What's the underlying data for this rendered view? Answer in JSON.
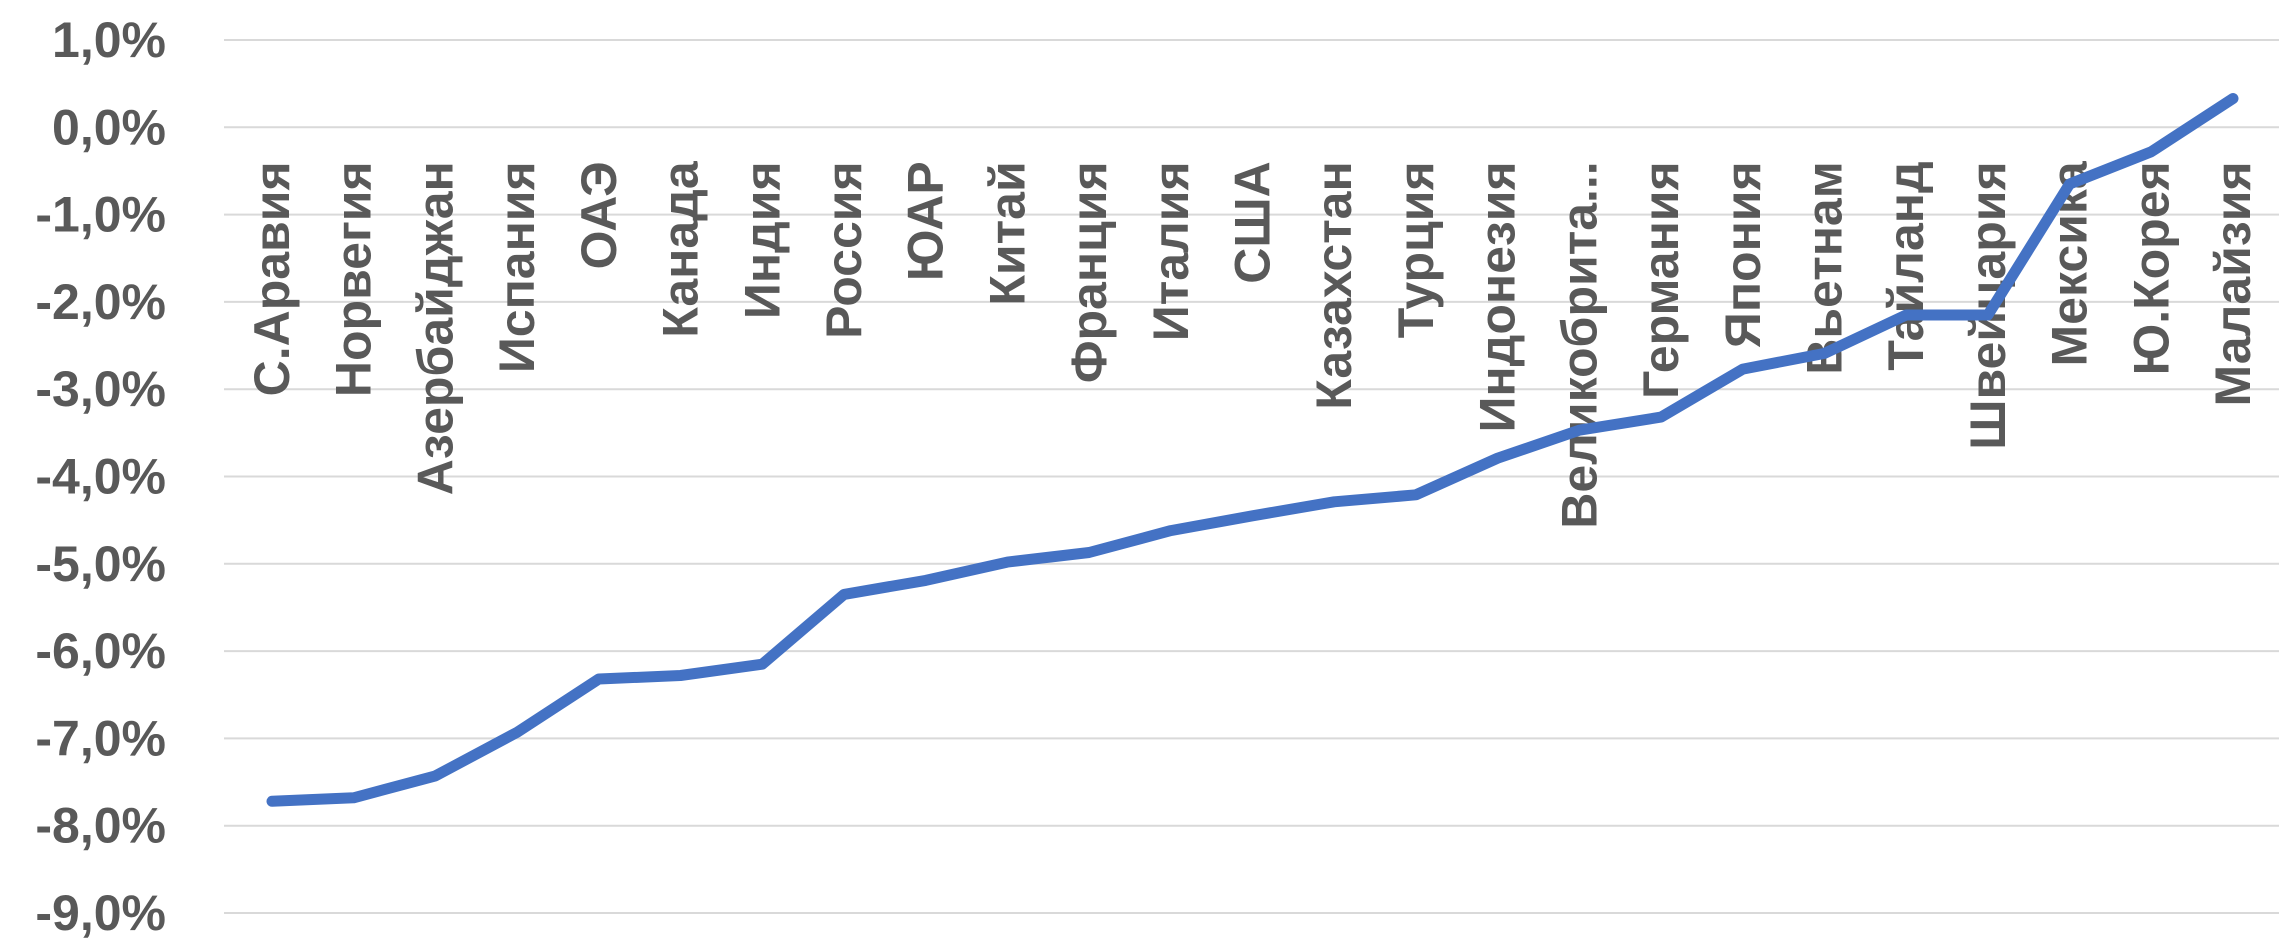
{
  "chart_data": {
    "type": "line",
    "title": "",
    "xlabel": "",
    "ylabel": "",
    "ylim": [
      -9,
      1
    ],
    "y_ticks": [
      1,
      0,
      -1,
      -2,
      -3,
      -4,
      -5,
      -6,
      -7,
      -8,
      -9
    ],
    "y_tick_labels": [
      "1,0%",
      "0,0%",
      "-1,0%",
      "-2,0%",
      "-3,0%",
      "-4,0%",
      "-5,0%",
      "-6,0%",
      "-7,0%",
      "-8,0%",
      "-9,0%"
    ],
    "grid": true,
    "legend": "none",
    "categories": [
      "С.Аравия",
      "Норвегия",
      "Азербайджан",
      "Испания",
      "ОАЭ",
      "Канада",
      "Индия",
      "Россия",
      "ЮАР",
      "Китай",
      "Франция",
      "Италия",
      "США",
      "Казахстан",
      "Турция",
      "Индонезия",
      "Великобрита...",
      "Германия",
      "Япония",
      "Вьетнам",
      "Тайланд",
      "Швейцария",
      "Мексика",
      "Ю.Корея",
      "Малайзия"
    ],
    "series": [
      {
        "color": "#4472c4",
        "values": [
          -7.72,
          -7.68,
          -7.43,
          -6.93,
          -6.32,
          -6.28,
          -6.15,
          -5.35,
          -5.19,
          -4.98,
          -4.87,
          -4.62,
          -4.45,
          -4.29,
          -4.21,
          -3.79,
          -3.47,
          -3.32,
          -2.77,
          -2.59,
          -2.15,
          -2.15,
          -0.65,
          -0.28,
          0.33
        ]
      }
    ]
  }
}
